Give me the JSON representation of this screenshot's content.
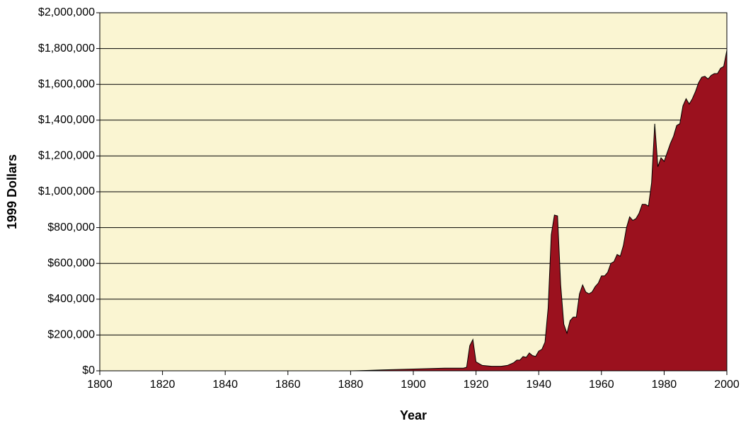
{
  "chart_data": {
    "type": "area",
    "x_label": "Year",
    "y_label": "1999 Dollars",
    "color": "#9b111e",
    "background": "#faf5d2",
    "grid": true,
    "x": [
      1800,
      1880,
      1885,
      1890,
      1900,
      1910,
      1915,
      1916,
      1917,
      1918,
      1919,
      1920,
      1921,
      1922,
      1925,
      1928,
      1930,
      1932,
      1933,
      1934,
      1935,
      1936,
      1937,
      1938,
      1939,
      1940,
      1941,
      1942,
      1943,
      1944,
      1945,
      1946,
      1947,
      1948,
      1949,
      1950,
      1951,
      1952,
      1953,
      1954,
      1955,
      1956,
      1957,
      1958,
      1959,
      1960,
      1961,
      1962,
      1963,
      1964,
      1965,
      1966,
      1967,
      1968,
      1969,
      1970,
      1971,
      1972,
      1973,
      1974,
      1975,
      1976,
      1977,
      1978,
      1979,
      1980,
      1981,
      1982,
      1983,
      1984,
      1985,
      1986,
      1987,
      1988,
      1989,
      1990,
      1991,
      1992,
      1993,
      1994,
      1995,
      1996,
      1997,
      1998,
      1999,
      2000
    ],
    "values": [
      0,
      0,
      2000,
      5000,
      10000,
      15000,
      15000,
      15000,
      20000,
      140000,
      175000,
      50000,
      40000,
      30000,
      25000,
      25000,
      30000,
      45000,
      60000,
      60000,
      80000,
      75000,
      100000,
      85000,
      80000,
      110000,
      120000,
      160000,
      350000,
      760000,
      870000,
      865000,
      480000,
      260000,
      210000,
      280000,
      300000,
      300000,
      430000,
      480000,
      440000,
      430000,
      440000,
      470000,
      490000,
      530000,
      530000,
      550000,
      600000,
      610000,
      650000,
      640000,
      700000,
      800000,
      860000,
      840000,
      850000,
      880000,
      930000,
      930000,
      920000,
      1050000,
      1380000,
      1140000,
      1190000,
      1170000,
      1220000,
      1270000,
      1310000,
      1370000,
      1380000,
      1480000,
      1520000,
      1490000,
      1520000,
      1560000,
      1610000,
      1640000,
      1645000,
      1630000,
      1650000,
      1660000,
      1660000,
      1690000,
      1700000,
      1790000
    ],
    "xlim": [
      1800,
      2000
    ],
    "xticks": [
      1800,
      1820,
      1840,
      1860,
      1880,
      1900,
      1920,
      1940,
      1960,
      1980,
      2000
    ],
    "ylim": [
      0,
      2000000
    ],
    "yticks": [
      {
        "value": 0,
        "label": "$0"
      },
      {
        "value": 200000,
        "label": "$200,000"
      },
      {
        "value": 400000,
        "label": "$400,000"
      },
      {
        "value": 600000,
        "label": "$600,000"
      },
      {
        "value": 800000,
        "label": "$800,000"
      },
      {
        "value": 1000000,
        "label": "$1,000,000"
      },
      {
        "value": 1200000,
        "label": "$1,200,000"
      },
      {
        "value": 1400000,
        "label": "$1,400,000"
      },
      {
        "value": 1600000,
        "label": "$1,600,000"
      },
      {
        "value": 1800000,
        "label": "$1,800,000"
      },
      {
        "value": 2000000,
        "label": "$2,000,000"
      }
    ]
  }
}
